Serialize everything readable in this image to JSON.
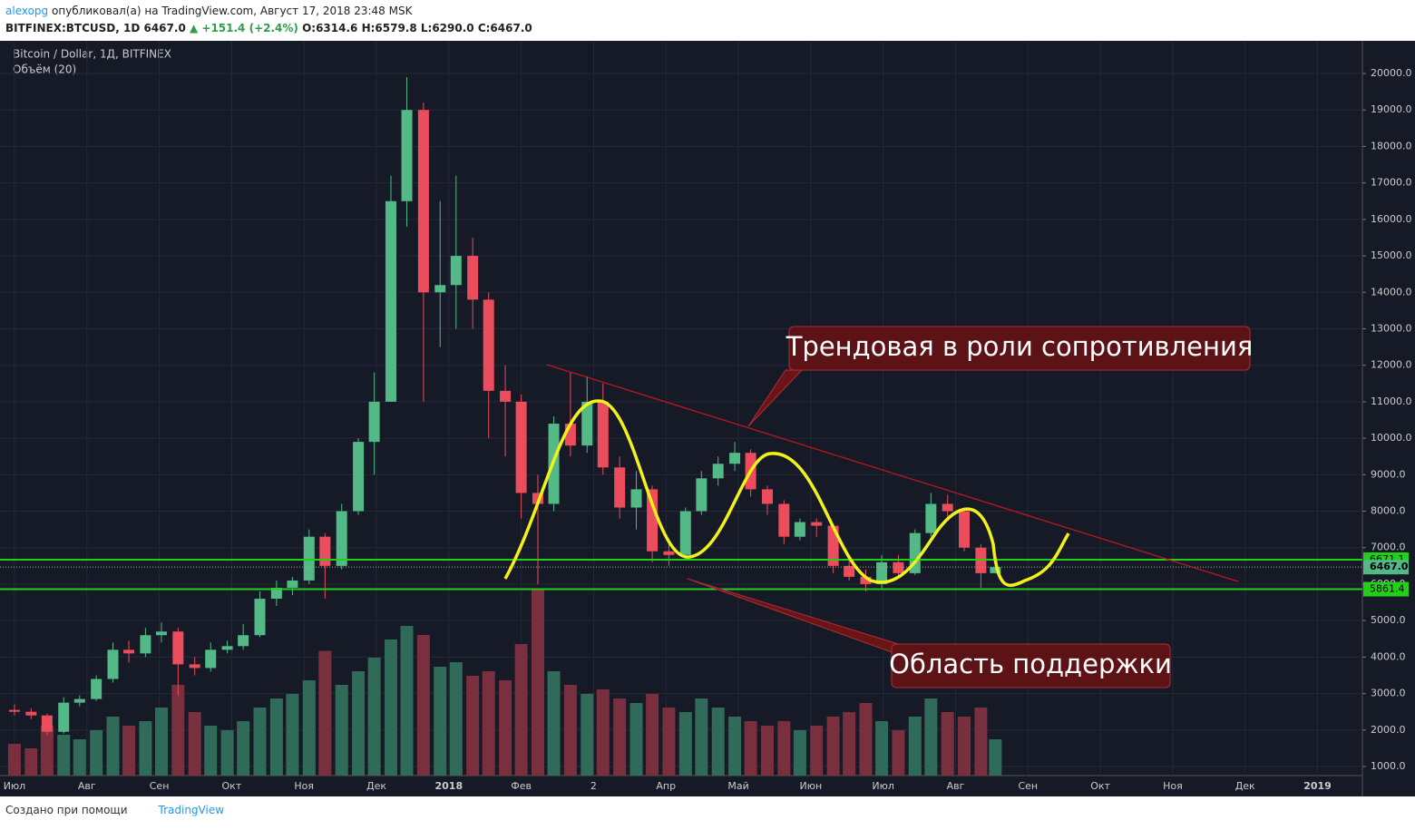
{
  "header": {
    "author": "alexopg",
    "published": "опубликовал(а) на TradingView.com, Август 17, 2018 23:48 MSK",
    "symbol": "BITFINEX:BTCUSD, 1D",
    "last": "6467.0",
    "change": "▲ +151.4 (+2.4%)",
    "ohlc": "O:6314.6 H:6579.8 L:6290.0 C:6467.0"
  },
  "footer": {
    "made_with": "Создано при помощи",
    "brand": "TradingView"
  },
  "chart_data": {
    "type": "candlestick",
    "title": "Bitcoin / Dollar, 1Д, BITFINEX",
    "subtitle": "Объём (20)",
    "x": [
      0,
      0.23,
      0.45,
      0.68,
      0.9,
      1.13,
      1.36,
      1.58,
      1.81,
      2.03,
      2.26,
      2.49,
      2.71,
      2.94,
      3.16,
      3.39,
      3.62,
      3.84,
      4.07,
      4.29,
      4.52,
      4.75,
      4.97,
      5.2,
      5.42,
      5.65,
      5.88,
      6.1,
      6.33,
      6.55,
      6.78,
      7.0,
      7.23,
      7.45,
      7.68,
      7.91,
      8.13,
      8.36,
      8.59,
      8.81,
      9.04,
      9.27,
      9.49,
      9.72,
      9.95,
      10.17,
      10.4,
      10.63,
      10.85,
      11.08,
      11.31,
      11.53,
      11.76,
      11.98,
      12.21,
      12.44,
      12.66,
      12.89,
      13.12,
      13.35,
      13.55
    ],
    "open": [
      2550,
      2500,
      2400,
      1950,
      2750,
      2850,
      3400,
      4200,
      4100,
      4600,
      4700,
      3800,
      3700,
      4200,
      4300,
      4600,
      5600,
      5900,
      6100,
      7300,
      6500,
      8000,
      9900,
      11000,
      16500,
      19000,
      14000,
      14200,
      15000,
      13800,
      11300,
      11000,
      8500,
      8200,
      10400,
      9800,
      11000,
      9200,
      8100,
      8600,
      6900,
      6800,
      8000,
      8900,
      9300,
      9600,
      8600,
      8200,
      7300,
      7700,
      7600,
      6500,
      6200,
      6000,
      6600,
      6300,
      7400,
      8200,
      8000,
      7000,
      6300
    ],
    "high": [
      2700,
      2600,
      2450,
      2900,
      2950,
      3500,
      4400,
      4450,
      4800,
      4950,
      4800,
      4000,
      4400,
      4450,
      4900,
      5800,
      6100,
      6200,
      7500,
      7400,
      8200,
      10000,
      11800,
      17200,
      19900,
      19200,
      16500,
      17200,
      15500,
      14000,
      12000,
      11200,
      9000,
      10600,
      11800,
      11700,
      11500,
      9500,
      9100,
      8700,
      7200,
      8100,
      9100,
      9500,
      9900,
      9700,
      8700,
      8300,
      7800,
      7800,
      7650,
      6700,
      6400,
      6800,
      6800,
      7500,
      8500,
      8450,
      8100,
      7100,
      6600
    ],
    "low": [
      2400,
      2300,
      1850,
      1900,
      2650,
      2800,
      3300,
      3850,
      4000,
      4400,
      2950,
      3500,
      3600,
      4100,
      4200,
      4550,
      5400,
      5700,
      6000,
      5600,
      6400,
      7900,
      9000,
      11000,
      15800,
      11000,
      12500,
      13000,
      13000,
      10000,
      9500,
      7800,
      6000,
      8000,
      9500,
      9600,
      9000,
      7800,
      7500,
      6600,
      6500,
      6700,
      7900,
      8700,
      9100,
      8400,
      7900,
      7100,
      7200,
      7300,
      6300,
      6100,
      5800,
      5850,
      6200,
      6250,
      7300,
      7800,
      6900,
      5900,
      6290
    ],
    "close": [
      2500,
      2400,
      1950,
      2750,
      2850,
      3400,
      4200,
      4100,
      4600,
      4700,
      3800,
      3700,
      4200,
      4300,
      4600,
      5600,
      5900,
      6100,
      7300,
      6500,
      8000,
      9900,
      11000,
      16500,
      19000,
      14000,
      14200,
      15000,
      13800,
      11300,
      11000,
      8500,
      8200,
      10400,
      9800,
      11000,
      9200,
      8100,
      8600,
      6900,
      6800,
      8000,
      8900,
      9300,
      9600,
      8600,
      8200,
      7300,
      7700,
      7600,
      6500,
      6200,
      6000,
      6600,
      6300,
      7400,
      8200,
      8000,
      7000,
      6300,
      6467
    ],
    "volume": [
      14,
      12,
      22,
      18,
      16,
      20,
      26,
      22,
      24,
      30,
      40,
      28,
      22,
      20,
      24,
      30,
      34,
      36,
      42,
      55,
      40,
      46,
      52,
      60,
      66,
      62,
      48,
      50,
      44,
      46,
      42,
      58,
      82,
      46,
      40,
      36,
      38,
      34,
      32,
      36,
      30,
      28,
      34,
      30,
      26,
      24,
      22,
      24,
      20,
      22,
      26,
      28,
      32,
      24,
      20,
      26,
      34,
      28,
      26,
      30,
      16
    ],
    "volume_ylim": [
      0,
      100
    ],
    "up_color": "#53b987",
    "down_color": "#eb4d5c",
    "volume_up_color": "#2f6b58",
    "volume_down_color": "#7a2f3e",
    "ylim": [
      751,
      20896
    ],
    "yticks": [
      {
        "value": 1000,
        "label": "1000.0"
      },
      {
        "value": 2000,
        "label": "2000.0"
      },
      {
        "value": 3000,
        "label": "3000.0"
      },
      {
        "value": 4000,
        "label": "4000.0"
      },
      {
        "value": 5000,
        "label": "5000.0"
      },
      {
        "value": 6000,
        "label": "6000.0"
      },
      {
        "value": 7000,
        "label": "7000.0"
      },
      {
        "value": 8000,
        "label": "8000.0"
      },
      {
        "value": 9000,
        "label": "9000.0"
      },
      {
        "value": 10000,
        "label": "10000.0"
      },
      {
        "value": 11000,
        "label": "11000.0"
      },
      {
        "value": 12000,
        "label": "12000.0"
      },
      {
        "value": 13000,
        "label": "13000.0"
      },
      {
        "value": 14000,
        "label": "14000.0"
      },
      {
        "value": 15000,
        "label": "15000.0"
      },
      {
        "value": 16000,
        "label": "16000.0"
      },
      {
        "value": 17000,
        "label": "17000.0"
      },
      {
        "value": 18000,
        "label": "18000.0"
      },
      {
        "value": 19000,
        "label": "19000.0"
      },
      {
        "value": 20000,
        "label": "20000.0"
      }
    ],
    "xlim": [
      -0.2,
      18.62
    ],
    "xticks": [
      {
        "value": 0,
        "label": "Июл"
      },
      {
        "value": 1,
        "label": "Авг"
      },
      {
        "value": 2,
        "label": "Сен"
      },
      {
        "value": 3,
        "label": "Окт"
      },
      {
        "value": 4,
        "label": "Ноя"
      },
      {
        "value": 5,
        "label": "Дек"
      },
      {
        "value": 6,
        "label": "2018"
      },
      {
        "value": 7,
        "label": "Фев"
      },
      {
        "value": 8,
        "label": "2"
      },
      {
        "value": 9,
        "label": "Апр"
      },
      {
        "value": 10,
        "label": "Май"
      },
      {
        "value": 11,
        "label": "Июн"
      },
      {
        "value": 12,
        "label": "Июл"
      },
      {
        "value": 13,
        "label": "Авг"
      },
      {
        "value": 14,
        "label": "Сен"
      },
      {
        "value": 15,
        "label": "Окт"
      },
      {
        "value": 16,
        "label": "Ноя"
      },
      {
        "value": 17,
        "label": "Дек"
      },
      {
        "value": 18,
        "label": "2019"
      }
    ],
    "levels": [
      {
        "value": 6671.1,
        "label": "6671.1",
        "color": "#22d01a"
      },
      {
        "value": 5861.4,
        "label": "5861.4",
        "color": "#22d01a"
      }
    ],
    "last_price": {
      "value": 6467,
      "label": "6467.0",
      "color": "#53b987"
    },
    "grid": true,
    "annotations": [
      "Трендовая в роли сопротивления",
      "Область поддержки"
    ]
  }
}
